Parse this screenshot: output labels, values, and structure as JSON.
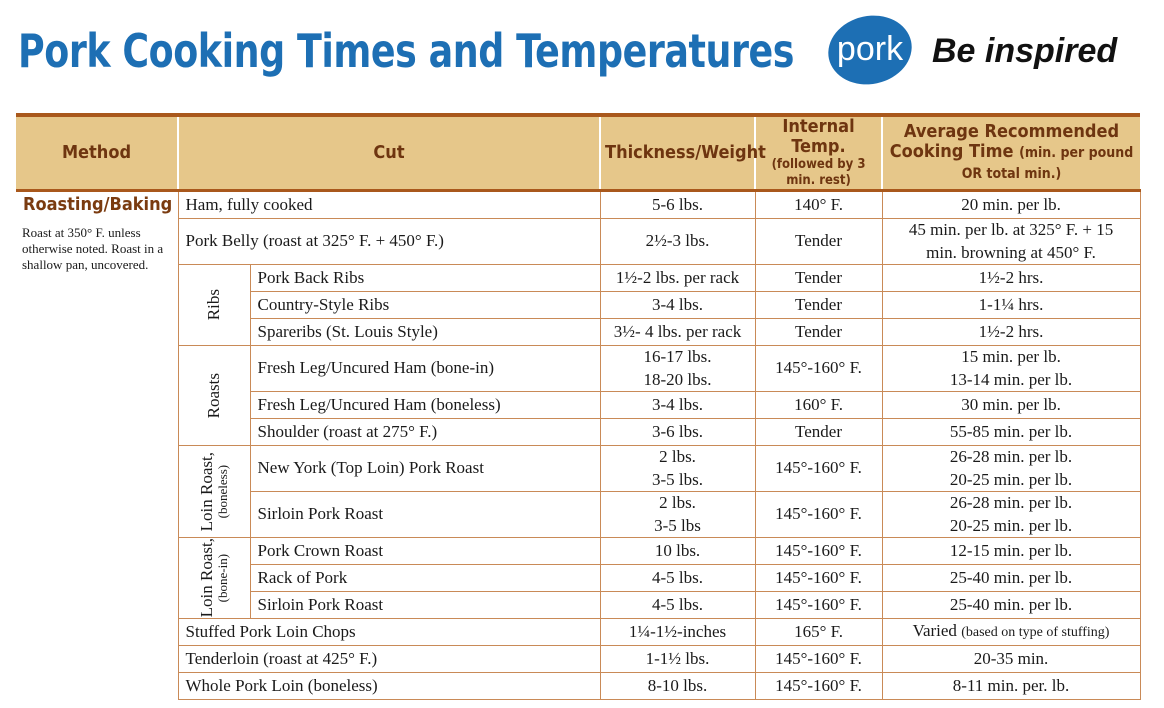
{
  "header": {
    "title": "Pork Cooking Times and Temperatures",
    "logo": "pork",
    "tagline": "Be inspired"
  },
  "table": {
    "columns": {
      "method": "Method",
      "cut": "Cut",
      "weight": "Thickness/Weight",
      "temp": "Internal Temp.",
      "temp_note": "(followed by 3 min. rest)",
      "time": "Average Recommended Cooking Time",
      "time_note": "(min. per pound OR total min.)"
    },
    "method": {
      "name": "Roasting/Baking",
      "note": "Roast at 350° F. unless otherwise noted. Roast in a shallow pan, uncovered."
    },
    "sections": [
      {
        "rows": [
          {
            "cut": "Ham, fully cooked",
            "weight": "5-6 lbs.",
            "temp": "140° F.",
            "time": "20 min. per lb."
          },
          {
            "cut": "Pork Belly (roast at 325° F. + 450° F.)",
            "weight": "2½-3 lbs.",
            "temp": "Tender",
            "time": [
              "45 min. per lb. at 325° F. + 15",
              "min. browning at 450° F."
            ]
          }
        ]
      },
      {
        "group": "Ribs",
        "rows": [
          {
            "cut": "Pork Back Ribs",
            "weight": "1½-2 lbs. per rack",
            "temp": "Tender",
            "time": "1½-2 hrs."
          },
          {
            "cut": "Country-Style Ribs",
            "weight": "3-4 lbs.",
            "temp": "Tender",
            "time": "1-1¼ hrs."
          },
          {
            "cut": "Spareribs (St. Louis Style)",
            "weight": "3½- 4 lbs. per rack",
            "temp": "Tender",
            "time": "1½-2 hrs."
          }
        ]
      },
      {
        "group": "Roasts",
        "rows": [
          {
            "cut": "Fresh Leg/Uncured Ham (bone-in)",
            "weight": [
              "16-17 lbs.",
              "18-20 lbs."
            ],
            "temp": "145°-160° F.",
            "time": [
              "15 min. per lb.",
              "13-14 min. per lb."
            ]
          },
          {
            "cut": "Fresh Leg/Uncured Ham (boneless)",
            "weight": "3-4 lbs.",
            "temp": "160° F.",
            "time": "30 min. per lb."
          },
          {
            "cut": "Shoulder (roast at 275° F.)",
            "weight": "3-6 lbs.",
            "temp": "Tender",
            "time": "55-85 min. per lb."
          }
        ]
      },
      {
        "group": "Loin Roast,",
        "group_note": "(boneless)",
        "rows": [
          {
            "cut": "New York (Top Loin) Pork Roast",
            "weight": [
              "2 lbs.",
              "3-5 lbs."
            ],
            "temp": "145°-160° F.",
            "time": [
              "26-28 min. per lb.",
              "20-25 min. per lb."
            ]
          },
          {
            "cut": "Sirloin Pork Roast",
            "weight": [
              "2 lbs.",
              "3-5 lbs"
            ],
            "temp": "145°-160° F.",
            "time": [
              "26-28 min. per lb.",
              "20-25 min. per lb."
            ]
          }
        ]
      },
      {
        "group": "Loin Roast,",
        "group_note": "(bone-in)",
        "rows": [
          {
            "cut": "Pork Crown Roast",
            "weight": "10 lbs.",
            "temp": "145°-160° F.",
            "time": "12-15 min. per lb."
          },
          {
            "cut": "Rack of Pork",
            "weight": "4-5 lbs.",
            "temp": "145°-160° F.",
            "time": "25-40 min. per lb."
          },
          {
            "cut": "Sirloin Pork Roast",
            "weight": "4-5 lbs.",
            "temp": "145°-160° F.",
            "time": "25-40 min. per lb."
          }
        ]
      },
      {
        "rows": [
          {
            "cut": "Stuffed Pork Loin Chops",
            "weight": "1¼-1½-inches",
            "temp": "165° F.",
            "time": "Varied",
            "time_note": "(based on type of stuffing)"
          },
          {
            "cut": "Tenderloin (roast at 425° F.)",
            "weight": "1-1½ lbs.",
            "temp": "145°-160° F.",
            "time": "20-35 min."
          },
          {
            "cut": "Whole Pork Loin (boneless)",
            "weight": "8-10 lbs.",
            "temp": "145°-160° F.",
            "time": "8-11 min. per. lb."
          }
        ]
      }
    ]
  }
}
